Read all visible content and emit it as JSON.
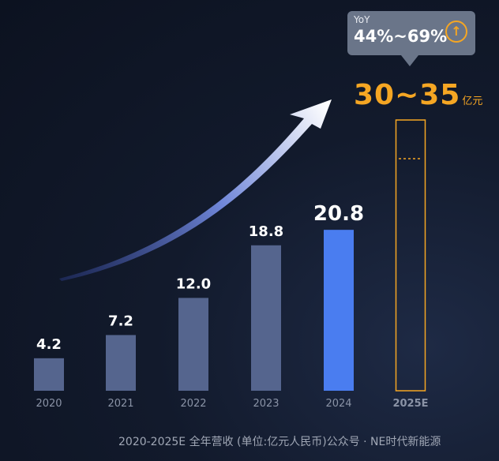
{
  "chart_data": {
    "type": "bar",
    "categories": [
      "2020",
      "2021",
      "2022",
      "2023",
      "2024",
      "2025E"
    ],
    "values": [
      4.2,
      7.2,
      12.0,
      18.8,
      20.8,
      null
    ],
    "value_labels": [
      "4.2",
      "7.2",
      "12.0",
      "18.8",
      "20.8",
      ""
    ],
    "forecast": {
      "category": "2025E",
      "range": [
        30,
        35
      ],
      "label": "30~35",
      "unit": "亿元"
    },
    "yoy": {
      "title": "YoY",
      "value": "44%~69%"
    },
    "ylim": [
      0,
      35
    ],
    "grid": false,
    "colors": {
      "bar": "#55658e",
      "highlight": "#4a7df0",
      "forecast": "#f5a623",
      "year_label": "#8a93a6",
      "highlight_year_label": "#5b8cf5"
    }
  },
  "footnote": "2020-2025E 全年营收 (单位:亿元人民币)公众号 · NE时代新能源"
}
